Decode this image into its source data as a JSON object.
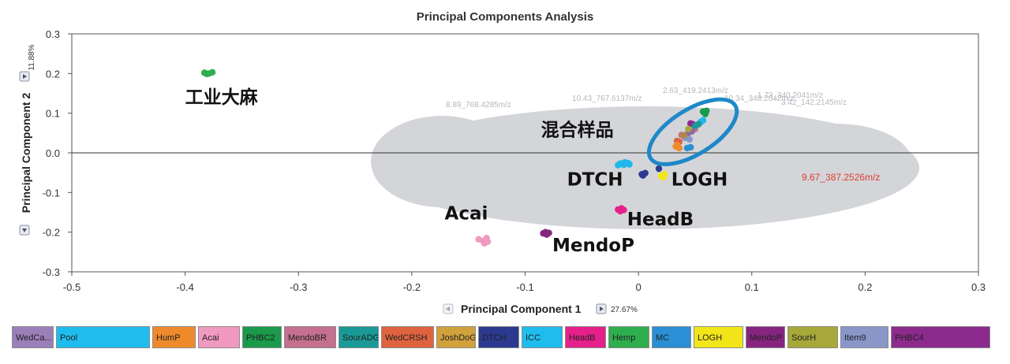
{
  "chart_data": {
    "type": "scatter",
    "title": "Principal Components Analysis",
    "xlabel": "Principal Component 1",
    "ylabel": "Principal Component 2",
    "x_variance": "27.67%",
    "y_variance": "11.88%",
    "xlim": [
      -0.5,
      0.3
    ],
    "ylim": [
      -0.3,
      0.3
    ],
    "xticks": [
      "-0.5",
      "-0.4",
      "-0.3",
      "-0.2",
      "-0.1",
      "0",
      "0.1",
      "0.2",
      "0.3"
    ],
    "yticks": [
      "0.3",
      "0.2",
      "0.1",
      "0.0",
      "-0.1",
      "-0.2",
      "-0.3"
    ],
    "loadings_cloud_color": "#d3d5d9",
    "cloud_labels": [
      "8.89_768.4285m/z",
      "10.43_767.6137m/z",
      "2.63_419.2413m/z",
      "10.34_348.2042m/z",
      "1.73_340.2041m/z",
      "3.42_142.2145m/z"
    ],
    "highlight_label": {
      "text": "9.67_387.2526m/z",
      "color": "#e03c31"
    },
    "series": [
      {
        "name": "Hemp",
        "color": "#2fae4e",
        "points": [
          [
            -0.383,
            0.202
          ],
          [
            -0.379,
            0.2
          ],
          [
            -0.376,
            0.203
          ],
          [
            -0.381,
            0.199
          ]
        ]
      },
      {
        "name": "Acai",
        "color": "#f19ac1",
        "points": [
          [
            -0.141,
            -0.218
          ],
          [
            -0.137,
            -0.222
          ],
          [
            -0.134,
            -0.215
          ],
          [
            -0.136,
            -0.228
          ],
          [
            -0.133,
            -0.224
          ]
        ]
      },
      {
        "name": "MendoP",
        "color": "#86257f",
        "points": [
          [
            -0.084,
            -0.203
          ],
          [
            -0.082,
            -0.2
          ],
          [
            -0.079,
            -0.202
          ],
          [
            -0.081,
            -0.206
          ]
        ]
      },
      {
        "name": "ICC",
        "color": "#1fb8ea",
        "points": [
          [
            -0.016,
            -0.027
          ],
          [
            -0.012,
            -0.024
          ],
          [
            -0.009,
            -0.026
          ],
          [
            -0.013,
            -0.03
          ],
          [
            -0.008,
            -0.029
          ],
          [
            -0.018,
            -0.031
          ]
        ]
      },
      {
        "name": "DTCH",
        "color": "#2b3a8f",
        "points": [
          [
            0.003,
            -0.054
          ],
          [
            0.006,
            -0.051
          ],
          [
            0.004,
            -0.057
          ],
          [
            0.018,
            -0.04
          ]
        ]
      },
      {
        "name": "LOGH",
        "color": "#f2e61a",
        "points": [
          [
            0.02,
            -0.058
          ],
          [
            0.023,
            -0.054
          ],
          [
            0.022,
            -0.062
          ]
        ]
      },
      {
        "name": "HeadB",
        "color": "#e6208a",
        "points": [
          [
            -0.018,
            -0.143
          ],
          [
            -0.015,
            -0.14
          ],
          [
            -0.016,
            -0.147
          ],
          [
            -0.013,
            -0.144
          ]
        ]
      },
      {
        "name": "PHBC2",
        "color": "#1a9a4a",
        "points": [
          [
            0.057,
            0.104
          ],
          [
            0.06,
            0.106
          ],
          [
            0.059,
            0.098
          ]
        ]
      },
      {
        "name": "MendoBR",
        "color": "#c4708e",
        "points": [
          [
            0.05,
            0.06
          ],
          [
            0.038,
            0.045
          ]
        ]
      },
      {
        "name": "WedCRSH",
        "color": "#e0633f",
        "points": [
          [
            0.034,
            0.03
          ],
          [
            0.036,
            0.028
          ]
        ]
      },
      {
        "name": "HumP",
        "color": "#ee8a2c",
        "points": [
          [
            0.034,
            0.02
          ],
          [
            0.036,
            0.012
          ],
          [
            0.033,
            0.016
          ]
        ]
      },
      {
        "name": "Pool",
        "color": "#1fb8ea",
        "points": [
          [
            0.057,
            0.082
          ],
          [
            0.055,
            0.078
          ]
        ]
      },
      {
        "name": "MC",
        "color": "#2a8fd4",
        "points": [
          [
            0.043,
            0.012
          ],
          [
            0.046,
            0.014
          ]
        ]
      },
      {
        "name": "WedCa...",
        "color": "#8a6ba8",
        "points": [
          [
            0.047,
            0.054
          ],
          [
            0.044,
            0.05
          ]
        ]
      },
      {
        "name": "PHBC4",
        "color": "#8c2a8d",
        "points": [
          [
            0.046,
            0.074
          ],
          [
            0.048,
            0.072
          ]
        ]
      },
      {
        "name": "Item9",
        "color": "#8a96c8",
        "points": [
          [
            0.041,
            0.038
          ],
          [
            0.045,
            0.034
          ]
        ]
      },
      {
        "name": "SourADG",
        "color": "#1a9a96",
        "points": [
          [
            0.053,
            0.072
          ],
          [
            0.05,
            0.068
          ]
        ]
      },
      {
        "name": "JoshDoG",
        "color": "#b08a3a",
        "points": [
          [
            0.04,
            0.044
          ]
        ]
      },
      {
        "name": "SourH",
        "color": "#a6a83a",
        "points": [
          [
            0.044,
            0.06
          ]
        ]
      }
    ],
    "annotations": [
      {
        "text": "工业大麻",
        "x": -0.4,
        "y": 0.125
      },
      {
        "text": "混合样品",
        "x": -0.086,
        "y": 0.043
      },
      {
        "text": "DTCH",
        "x": -0.063,
        "y": -0.082
      },
      {
        "text": "LOGH",
        "x": 0.029,
        "y": -0.082
      },
      {
        "text": "Acai",
        "x": -0.171,
        "y": -0.168
      },
      {
        "text": "HeadB",
        "x": -0.01,
        "y": -0.183
      },
      {
        "text": "MendoP",
        "x": -0.076,
        "y": -0.248
      }
    ],
    "highlight_ellipse": {
      "cx": 0.048,
      "cy": 0.053,
      "rx": 0.044,
      "ry": 0.056,
      "color": "#1e88c8"
    }
  },
  "legend": [
    {
      "label": "WedCa...",
      "color": "#9b7fb8"
    },
    {
      "label": "Pool",
      "color": "#1fbdee"
    },
    {
      "label": "HumP",
      "color": "#ee8a2c"
    },
    {
      "label": "Acai",
      "color": "#f19ac1"
    },
    {
      "label": "PHBC2",
      "color": "#1a9a4a"
    },
    {
      "label": "MendoBR",
      "color": "#c4708e"
    },
    {
      "label": "SourADG",
      "color": "#1a9a96"
    },
    {
      "label": "WedCRSH",
      "color": "#e0633f"
    },
    {
      "label": "JoshDoG",
      "color": "#d1a23c"
    },
    {
      "label": "DTCH",
      "color": "#2b3a8f"
    },
    {
      "label": "ICC",
      "color": "#1fbdee"
    },
    {
      "label": "HeadB",
      "color": "#e6208a"
    },
    {
      "label": "Hemp",
      "color": "#2fae4e"
    },
    {
      "label": "MC",
      "color": "#2a8fd4"
    },
    {
      "label": "LOGH",
      "color": "#f2e61a"
    },
    {
      "label": "MendoP",
      "color": "#86257f"
    },
    {
      "label": "SourH",
      "color": "#a6a83a"
    },
    {
      "label": "Item9",
      "color": "#8a96c8"
    },
    {
      "label": "PHBC4",
      "color": "#8c2a8d"
    }
  ]
}
